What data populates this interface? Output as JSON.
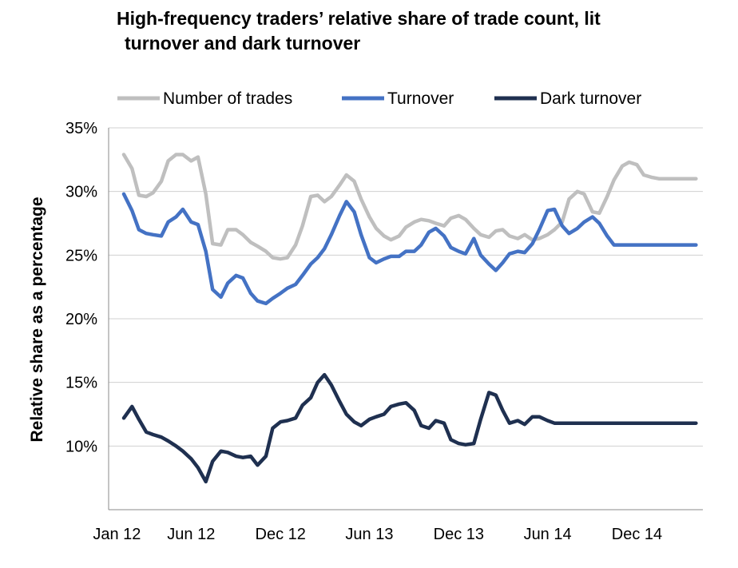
{
  "chart_data": {
    "type": "line",
    "title_line1": "High-frequency traders’ relative share of trade count, lit",
    "title_line2": "turnover and dark turnover",
    "xlabel": "",
    "ylabel": "Relative share as a percentage",
    "ylim": [
      5,
      35
    ],
    "y_ticks": [
      "10%",
      "15%",
      "20%",
      "25%",
      "30%",
      "35%"
    ],
    "x_ticks": [
      "Jan 12",
      "Jun 12",
      "Dec 12",
      "Jun 13",
      "Dec 13",
      "Jun 14",
      "Dec 14"
    ],
    "x_tick_dates": [
      "2012-01-01",
      "2012-06-01",
      "2012-12-01",
      "2013-06-01",
      "2013-12-01",
      "2014-06-01",
      "2014-12-01"
    ],
    "x_range": [
      "2011-12-15",
      "2015-04-15"
    ],
    "grid": "horizontal",
    "legend_position": "top",
    "series": [
      {
        "name": "Number of trades",
        "color": "#BFBFBF",
        "x": [
          "2012-01-15",
          "2012-02-01",
          "2012-02-15",
          "2012-03-01",
          "2012-03-15",
          "2012-04-01",
          "2012-04-15",
          "2012-05-01",
          "2012-05-15",
          "2012-06-01",
          "2012-06-15",
          "2012-07-01",
          "2012-07-15",
          "2012-08-01",
          "2012-08-15",
          "2012-09-01",
          "2012-09-15",
          "2012-10-01",
          "2012-10-15",
          "2012-11-01",
          "2012-11-15",
          "2012-12-01",
          "2012-12-15",
          "2013-01-01",
          "2013-01-15",
          "2013-02-01",
          "2013-02-15",
          "2013-03-01",
          "2013-03-15",
          "2013-04-01",
          "2013-04-15",
          "2013-05-01",
          "2013-05-15",
          "2013-06-01",
          "2013-06-15",
          "2013-07-01",
          "2013-07-15",
          "2013-08-01",
          "2013-08-15",
          "2013-09-01",
          "2013-09-15",
          "2013-10-01",
          "2013-10-15",
          "2013-11-01",
          "2013-11-15",
          "2013-12-01",
          "2013-12-15",
          "2014-01-01",
          "2014-01-15",
          "2014-02-01",
          "2014-02-15",
          "2014-03-01",
          "2014-03-15",
          "2014-04-01",
          "2014-04-15",
          "2014-05-01",
          "2014-05-15",
          "2014-06-01",
          "2014-06-15",
          "2014-07-01",
          "2014-07-15",
          "2014-08-01",
          "2014-08-15",
          "2014-09-01",
          "2014-09-15",
          "2014-10-01",
          "2014-10-15",
          "2014-11-01",
          "2014-11-15",
          "2014-12-01",
          "2014-12-15",
          "2015-01-01",
          "2015-01-15",
          "2015-02-01",
          "2015-02-15",
          "2015-03-01",
          "2015-03-15",
          "2015-04-01"
        ],
        "values": [
          32.9,
          31.8,
          29.7,
          29.6,
          29.9,
          30.8,
          32.4,
          32.9,
          32.9,
          32.4,
          32.7,
          29.8,
          25.9,
          25.8,
          27.0,
          27.0,
          26.6,
          26.0,
          25.7,
          25.3,
          24.8,
          24.7,
          24.8,
          25.8,
          27.3,
          29.6,
          29.7,
          29.2,
          29.6,
          30.5,
          31.3,
          30.8,
          29.4,
          28.0,
          27.1,
          26.5,
          26.2,
          26.5,
          27.2,
          27.6,
          27.8,
          27.7,
          27.5,
          27.3,
          27.9,
          28.1,
          27.8,
          27.1,
          26.6,
          26.4,
          26.9,
          27.0,
          26.5,
          26.3,
          26.6,
          26.2,
          26.3,
          26.6,
          27.0,
          27.6,
          29.4,
          30.0,
          29.8,
          28.4,
          28.3,
          29.6,
          30.9,
          32.0,
          32.3,
          32.1,
          31.3,
          31.1,
          31.0,
          31.0,
          31.0,
          31.0,
          31.0,
          31.0
        ]
      },
      {
        "name": "Turnover",
        "color": "#4472C4",
        "x": [
          "2012-01-15",
          "2012-02-01",
          "2012-02-15",
          "2012-03-01",
          "2012-03-15",
          "2012-04-01",
          "2012-04-15",
          "2012-05-01",
          "2012-05-15",
          "2012-06-01",
          "2012-06-15",
          "2012-07-01",
          "2012-07-15",
          "2012-08-01",
          "2012-08-15",
          "2012-09-01",
          "2012-09-15",
          "2012-10-01",
          "2012-10-15",
          "2012-11-01",
          "2012-11-15",
          "2012-12-01",
          "2012-12-15",
          "2013-01-01",
          "2013-01-15",
          "2013-02-01",
          "2013-02-15",
          "2013-03-01",
          "2013-03-15",
          "2013-04-01",
          "2013-04-15",
          "2013-05-01",
          "2013-05-15",
          "2013-06-01",
          "2013-06-15",
          "2013-07-01",
          "2013-07-15",
          "2013-08-01",
          "2013-08-15",
          "2013-09-01",
          "2013-09-15",
          "2013-10-01",
          "2013-10-15",
          "2013-11-01",
          "2013-11-15",
          "2013-12-01",
          "2013-12-15",
          "2014-01-01",
          "2014-01-15",
          "2014-02-01",
          "2014-02-15",
          "2014-03-01",
          "2014-03-15",
          "2014-04-01",
          "2014-04-15",
          "2014-05-01",
          "2014-05-15",
          "2014-06-01",
          "2014-06-15",
          "2014-07-01",
          "2014-07-15",
          "2014-08-01",
          "2014-08-15",
          "2014-09-01",
          "2014-09-15",
          "2014-10-01",
          "2014-10-15",
          "2014-11-01",
          "2014-11-15",
          "2014-12-01",
          "2014-12-15",
          "2015-01-01",
          "2015-01-15",
          "2015-02-01",
          "2015-02-15",
          "2015-03-01",
          "2015-03-15",
          "2015-04-01"
        ],
        "values": [
          29.8,
          28.5,
          27.0,
          26.7,
          26.6,
          26.5,
          27.6,
          28.0,
          28.6,
          27.6,
          27.4,
          25.3,
          22.3,
          21.7,
          22.8,
          23.4,
          23.2,
          22.0,
          21.4,
          21.2,
          21.6,
          22.0,
          22.4,
          22.7,
          23.4,
          24.3,
          24.8,
          25.5,
          26.6,
          28.1,
          29.2,
          28.4,
          26.6,
          24.8,
          24.4,
          24.7,
          24.9,
          24.9,
          25.3,
          25.3,
          25.8,
          26.8,
          27.1,
          26.5,
          25.6,
          25.3,
          25.1,
          26.3,
          25.0,
          24.3,
          23.8,
          24.4,
          25.1,
          25.3,
          25.2,
          25.9,
          27.0,
          28.5,
          28.6,
          27.3,
          26.7,
          27.1,
          27.6,
          28.0,
          27.5,
          26.5,
          25.8,
          25.8,
          25.8,
          25.8,
          25.8,
          25.8,
          25.8,
          25.8,
          25.8,
          25.8,
          25.8,
          25.8
        ]
      },
      {
        "name": "Dark turnover",
        "color": "#1F3050",
        "x": [
          "2012-01-15",
          "2012-02-01",
          "2012-02-15",
          "2012-03-01",
          "2012-03-15",
          "2012-04-01",
          "2012-04-15",
          "2012-05-01",
          "2012-05-15",
          "2012-06-01",
          "2012-06-15",
          "2012-07-01",
          "2012-07-15",
          "2012-08-01",
          "2012-08-15",
          "2012-09-01",
          "2012-09-15",
          "2012-10-01",
          "2012-10-15",
          "2012-11-01",
          "2012-11-15",
          "2012-12-01",
          "2012-12-15",
          "2013-01-01",
          "2013-01-15",
          "2013-02-01",
          "2013-02-15",
          "2013-03-01",
          "2013-03-15",
          "2013-04-01",
          "2013-04-15",
          "2013-05-01",
          "2013-05-15",
          "2013-06-01",
          "2013-06-15",
          "2013-07-01",
          "2013-07-15",
          "2013-08-01",
          "2013-08-15",
          "2013-09-01",
          "2013-09-15",
          "2013-10-01",
          "2013-10-15",
          "2013-11-01",
          "2013-11-15",
          "2013-12-01",
          "2013-12-15",
          "2014-01-01",
          "2014-01-15",
          "2014-02-01",
          "2014-02-15",
          "2014-03-01",
          "2014-03-15",
          "2014-04-01",
          "2014-04-15",
          "2014-05-01",
          "2014-05-15",
          "2014-06-01",
          "2014-06-15",
          "2014-07-01",
          "2014-07-15",
          "2014-08-01",
          "2014-08-15",
          "2014-09-01",
          "2014-09-15",
          "2014-10-01",
          "2014-10-15",
          "2014-11-01",
          "2014-11-15",
          "2014-12-01",
          "2014-12-15",
          "2015-01-01",
          "2015-01-15",
          "2015-02-01",
          "2015-02-15",
          "2015-03-01",
          "2015-03-15",
          "2015-04-01"
        ],
        "values": [
          12.2,
          13.1,
          12.1,
          11.1,
          10.9,
          10.7,
          10.4,
          10.0,
          9.6,
          9.0,
          8.3,
          7.2,
          8.8,
          9.6,
          9.5,
          9.2,
          9.1,
          9.2,
          8.5,
          9.2,
          11.4,
          11.9,
          12.0,
          12.2,
          13.2,
          13.8,
          15.0,
          15.6,
          14.8,
          13.5,
          12.5,
          11.9,
          11.6,
          12.1,
          12.3,
          12.5,
          13.1,
          13.3,
          13.4,
          12.8,
          11.6,
          11.4,
          12.0,
          11.8,
          10.5,
          10.2,
          10.1,
          10.2,
          12.1,
          14.2,
          14.0,
          12.8,
          11.8,
          12.0,
          11.7,
          12.3,
          12.3,
          12.0,
          11.8,
          11.8,
          11.8,
          11.8,
          11.8,
          11.8,
          11.8,
          11.8,
          11.8,
          11.8,
          11.8,
          11.8,
          11.8,
          11.8,
          11.8,
          11.8,
          11.8,
          11.8,
          11.8,
          11.8
        ]
      }
    ]
  }
}
